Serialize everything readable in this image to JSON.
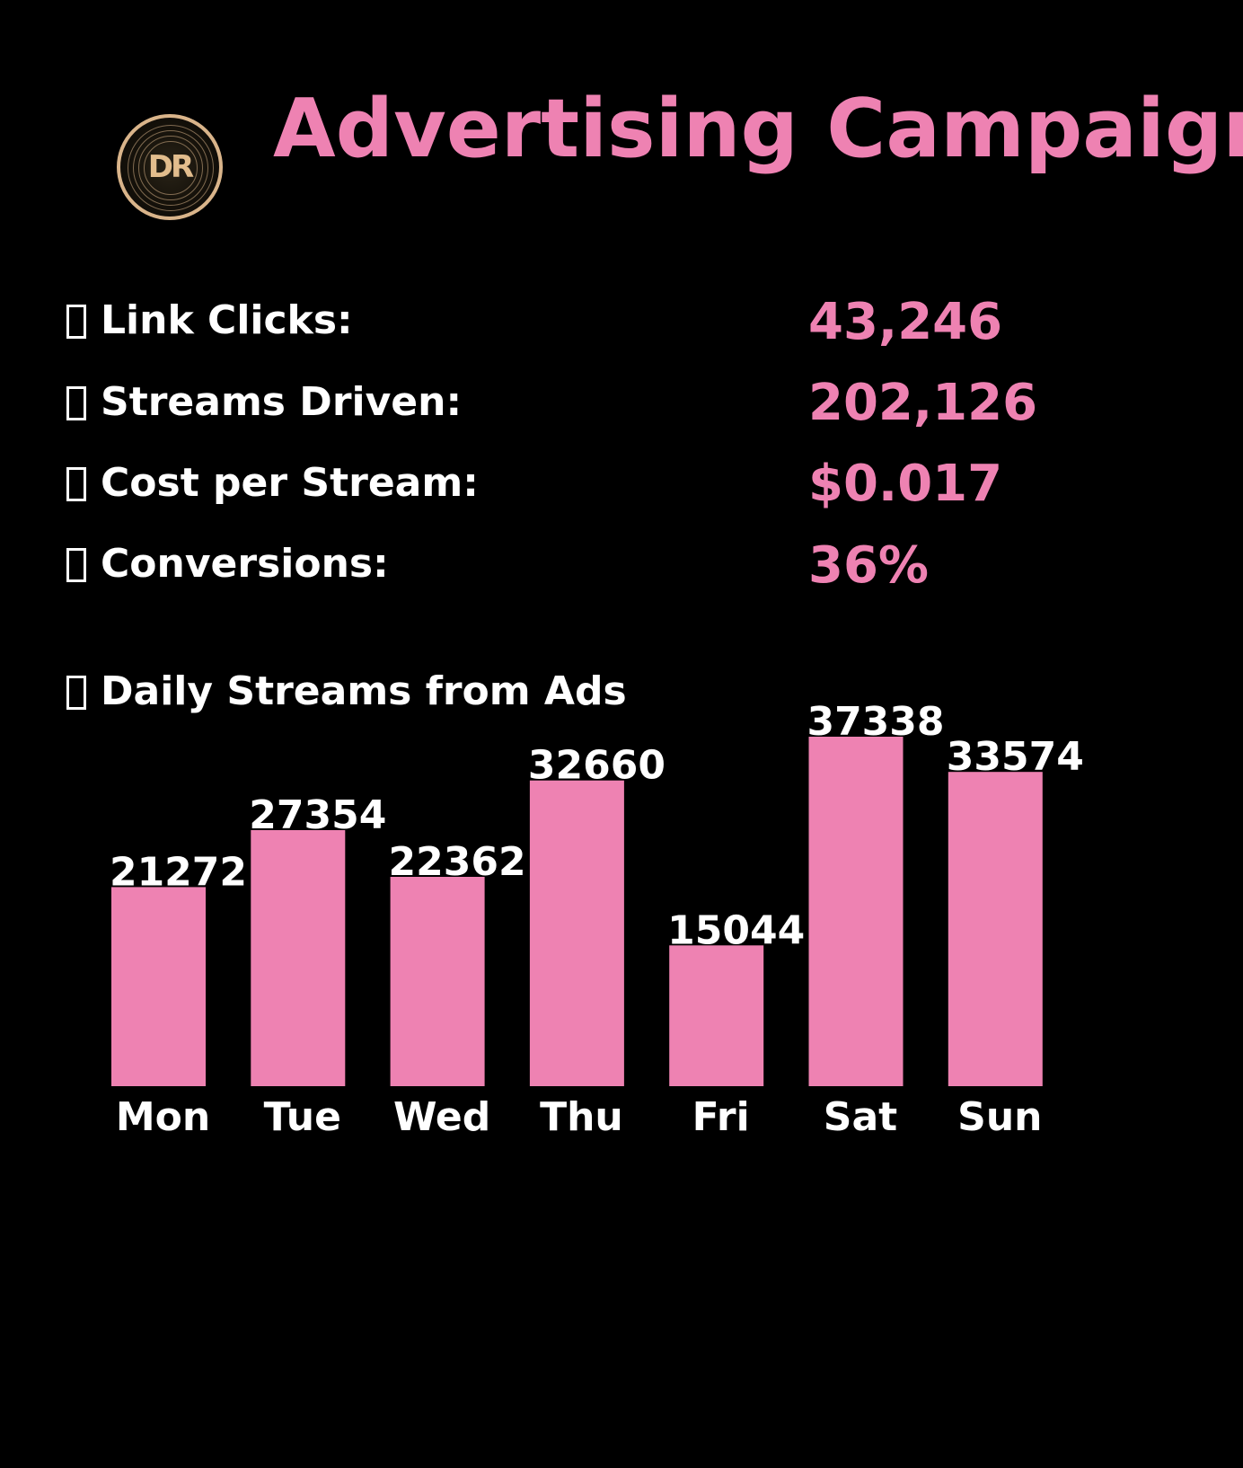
{
  "header": {
    "title": "Advertising Campaign",
    "logo_text": "DR"
  },
  "stats": [
    {
      "label": "Link Clicks:",
      "value": "43,246"
    },
    {
      "label": "Streams Driven:",
      "value": "202,126"
    },
    {
      "label": "Cost per Stream:",
      "value": "$0.017"
    },
    {
      "label": "Conversions:",
      "value": "36%"
    }
  ],
  "colors": {
    "background": "#000000",
    "accent": "#ee82b2",
    "text": "#ffffff",
    "logo_gold": "#d9b48a"
  },
  "chart_label": "Daily Streams from Ads",
  "chart_data": {
    "type": "bar",
    "title": "Daily Streams from Ads",
    "categories": [
      "Mon",
      "Tue",
      "Wed",
      "Thu",
      "Fri",
      "Sat",
      "Sun"
    ],
    "values": [
      21272,
      27354,
      22362,
      32660,
      15044,
      37338,
      33574
    ],
    "ylim": [
      0,
      37338
    ],
    "grid": false,
    "data_labels": true
  }
}
